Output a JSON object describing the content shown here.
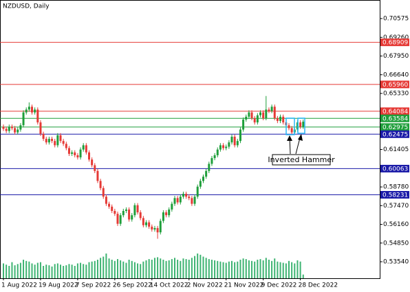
{
  "chart_data": {
    "type": "candlestick",
    "title": "NZDUSD, Daily",
    "categories": [
      "1 Aug 2022",
      null,
      null,
      null,
      null,
      null,
      null,
      null,
      null,
      null,
      null,
      null,
      null,
      "19 Aug 2022",
      null,
      null,
      null,
      null,
      null,
      null,
      null,
      null,
      null,
      null,
      null,
      null,
      "7 Sep 2022",
      null,
      null,
      null,
      null,
      null,
      null,
      null,
      null,
      null,
      null,
      null,
      null,
      "26 Sep 2022",
      null,
      null,
      null,
      null,
      null,
      null,
      null,
      null,
      null,
      null,
      null,
      null,
      "14 Oct 2022",
      null,
      null,
      null,
      null,
      null,
      null,
      null,
      null,
      null,
      null,
      null,
      null,
      "2 Nov 2022",
      null,
      null,
      null,
      null,
      null,
      null,
      null,
      null,
      null,
      null,
      null,
      null,
      "21 Nov 2022",
      null,
      null,
      null,
      null,
      null,
      null,
      null,
      null,
      null,
      null,
      null,
      null,
      "9 Dec 2022",
      null,
      null,
      null,
      null,
      null,
      null,
      null,
      null,
      null,
      null,
      null,
      null,
      "28 Dec 2022",
      null
    ],
    "open": [
      0.63,
      0.6285,
      0.627,
      0.63,
      0.629,
      0.626,
      0.628,
      0.631,
      0.64,
      0.642,
      0.644,
      0.64,
      0.642,
      0.633,
      0.625,
      0.6215,
      0.619,
      0.6215,
      0.62,
      0.617,
      0.624,
      0.62,
      0.618,
      0.615,
      0.611,
      0.612,
      0.61,
      0.6085,
      0.614,
      0.617,
      0.612,
      0.607,
      0.603,
      0.599,
      0.592,
      0.587,
      0.581,
      0.576,
      0.574,
      0.571,
      0.569,
      0.562,
      0.568,
      0.571,
      0.572,
      0.565,
      0.568,
      0.575,
      0.57,
      0.566,
      0.561,
      0.563,
      0.56,
      0.558,
      0.559,
      0.556,
      0.564,
      0.57,
      0.568,
      0.572,
      0.576,
      0.58,
      0.577,
      0.581,
      0.583,
      0.581,
      0.58,
      0.576,
      0.581,
      0.588,
      0.592,
      0.595,
      0.599,
      0.604,
      0.608,
      0.61,
      0.614,
      0.617,
      0.615,
      0.616,
      0.619,
      0.623,
      0.617,
      0.62,
      0.628,
      0.635,
      0.637,
      0.64,
      0.636,
      0.633,
      0.638,
      0.64,
      0.636,
      0.642,
      0.641,
      0.644,
      0.636,
      0.634,
      0.637,
      0.633,
      0.631,
      0.629,
      0.626,
      0.628,
      0.633,
      0.63
    ],
    "high": [
      0.6315,
      0.63,
      0.6315,
      0.6315,
      0.6305,
      0.6295,
      0.6325,
      0.6415,
      0.6435,
      0.647,
      0.6455,
      0.6435,
      0.6435,
      0.6345,
      0.6265,
      0.623,
      0.623,
      0.623,
      0.6215,
      0.6255,
      0.6255,
      0.6215,
      0.6195,
      0.6165,
      0.6135,
      0.6135,
      0.6115,
      0.6155,
      0.6185,
      0.6185,
      0.6135,
      0.6085,
      0.6045,
      0.6005,
      0.5935,
      0.5885,
      0.5825,
      0.5775,
      0.5755,
      0.5725,
      0.5705,
      0.5695,
      0.5725,
      0.5735,
      0.5735,
      0.5695,
      0.5765,
      0.5765,
      0.5715,
      0.5675,
      0.5645,
      0.5645,
      0.5615,
      0.5605,
      0.5605,
      0.5655,
      0.5715,
      0.5715,
      0.5735,
      0.5775,
      0.5815,
      0.5815,
      0.5825,
      0.5845,
      0.5845,
      0.5825,
      0.5815,
      0.5825,
      0.5895,
      0.5935,
      0.5965,
      0.6005,
      0.6055,
      0.6095,
      0.6115,
      0.6155,
      0.6185,
      0.6185,
      0.6175,
      0.6205,
      0.6245,
      0.6245,
      0.6215,
      0.6295,
      0.6365,
      0.6385,
      0.6415,
      0.6415,
      0.6375,
      0.6395,
      0.6415,
      0.6415,
      0.6515,
      0.6435,
      0.6455,
      0.6455,
      0.6375,
      0.6385,
      0.6385,
      0.6345,
      0.6325,
      0.6305,
      0.6295,
      0.6345,
      0.6345,
      0.635
    ],
    "low": [
      0.627,
      0.6255,
      0.6255,
      0.6275,
      0.6245,
      0.6245,
      0.6265,
      0.6295,
      0.6385,
      0.6405,
      0.6385,
      0.6385,
      0.6315,
      0.6235,
      0.62,
      0.6175,
      0.6175,
      0.6185,
      0.6155,
      0.6155,
      0.6185,
      0.6165,
      0.6135,
      0.6095,
      0.6095,
      0.6085,
      0.607,
      0.607,
      0.6125,
      0.6105,
      0.6055,
      0.6015,
      0.5975,
      0.5905,
      0.5855,
      0.5795,
      0.5745,
      0.5725,
      0.5695,
      0.5675,
      0.5605,
      0.5605,
      0.5665,
      0.5695,
      0.5635,
      0.5635,
      0.5665,
      0.5685,
      0.5645,
      0.5595,
      0.5595,
      0.5585,
      0.5565,
      0.5565,
      0.5515,
      0.5545,
      0.5625,
      0.5665,
      0.5665,
      0.5705,
      0.5745,
      0.5755,
      0.5755,
      0.5795,
      0.5795,
      0.5785,
      0.5745,
      0.5745,
      0.5795,
      0.5865,
      0.5905,
      0.5935,
      0.5975,
      0.6025,
      0.6065,
      0.6085,
      0.6125,
      0.6135,
      0.6135,
      0.6145,
      0.6175,
      0.6155,
      0.6155,
      0.6185,
      0.6265,
      0.6335,
      0.6355,
      0.6345,
      0.6315,
      0.6315,
      0.6365,
      0.6345,
      0.6345,
      0.6395,
      0.6395,
      0.6345,
      0.6325,
      0.6325,
      0.6315,
      0.6295,
      0.6275,
      0.6245,
      0.6245,
      0.6265,
      0.6285,
      0.6285
    ],
    "close": [
      0.6285,
      0.627,
      0.63,
      0.629,
      0.626,
      0.628,
      0.631,
      0.64,
      0.642,
      0.644,
      0.64,
      0.642,
      0.633,
      0.625,
      0.6215,
      0.619,
      0.6215,
      0.62,
      0.617,
      0.624,
      0.62,
      0.618,
      0.615,
      0.611,
      0.612,
      0.61,
      0.6085,
      0.614,
      0.617,
      0.612,
      0.607,
      0.603,
      0.599,
      0.592,
      0.587,
      0.581,
      0.576,
      0.574,
      0.571,
      0.569,
      0.562,
      0.568,
      0.571,
      0.572,
      0.565,
      0.568,
      0.575,
      0.57,
      0.566,
      0.561,
      0.563,
      0.56,
      0.558,
      0.559,
      0.556,
      0.564,
      0.57,
      0.568,
      0.572,
      0.576,
      0.58,
      0.577,
      0.581,
      0.583,
      0.581,
      0.58,
      0.576,
      0.581,
      0.588,
      0.592,
      0.595,
      0.599,
      0.604,
      0.608,
      0.61,
      0.614,
      0.617,
      0.615,
      0.616,
      0.619,
      0.623,
      0.617,
      0.62,
      0.628,
      0.635,
      0.637,
      0.64,
      0.636,
      0.633,
      0.638,
      0.64,
      0.636,
      0.642,
      0.641,
      0.644,
      0.636,
      0.634,
      0.637,
      0.633,
      0.631,
      0.629,
      0.626,
      0.628,
      0.633,
      0.63,
      0.6335
    ],
    "volume": [
      24,
      22,
      20,
      26,
      21,
      23,
      25,
      30,
      28,
      27,
      24,
      22,
      25,
      26,
      20,
      22,
      21,
      19,
      23,
      24,
      22,
      20,
      21,
      23,
      22,
      20,
      24,
      25,
      23,
      22,
      26,
      27,
      28,
      30,
      33,
      35,
      40,
      32,
      30,
      28,
      31,
      29,
      27,
      25,
      30,
      28,
      26,
      24,
      23,
      27,
      29,
      31,
      30,
      33,
      34,
      32,
      30,
      28,
      29,
      31,
      33,
      30,
      28,
      32,
      31,
      30,
      33,
      36,
      40,
      38,
      35,
      33,
      31,
      30,
      29,
      28,
      27,
      26,
      25,
      27,
      28,
      26,
      27,
      30,
      32,
      31,
      29,
      28,
      27,
      30,
      31,
      29,
      33,
      30,
      28,
      32,
      27,
      26,
      25,
      24,
      28,
      26,
      24,
      29,
      27,
      6
    ],
    "ylim": [
      0.52384,
      0.71874
    ],
    "yticks": [
      0.70575,
      {
        "value": 0.6926,
        "label": "0.69260"
      },
      {
        "value": 0.6795,
        "label": "0.67950"
      },
      {
        "value": 0.6664,
        "label": "0.66640"
      },
      {
        "value": 0.6533,
        "label": "0.65330"
      },
      0.61405,
      {
        "value": 0.5878,
        "label": "0.58780"
      },
      {
        "value": 0.5747,
        "label": "0.57470"
      },
      {
        "value": 0.5616,
        "label": "0.56160"
      },
      {
        "value": 0.5485,
        "label": "0.54850"
      },
      {
        "value": 0.5354,
        "label": "0.53540"
      }
    ],
    "levels": [
      {
        "value": 0.68909,
        "color": "#e53935"
      },
      {
        "value": 0.6596,
        "label": "0.65960",
        "color": "#e53935"
      },
      {
        "value": 0.64084,
        "color": "#e53935"
      },
      {
        "value": 0.63584,
        "color": "#1e9e3a"
      },
      {
        "value": 0.62975,
        "color": "#1e9e3a"
      },
      {
        "value": 0.62475,
        "color": "#1a1aa8"
      },
      {
        "value": 0.60063,
        "color": "#1a1aa8"
      },
      {
        "value": 0.58231,
        "color": "#1a1aa8"
      }
    ],
    "bull_color": "#1e9e3a",
    "bear_color": "#e53935",
    "volume_color": "#3cb371",
    "annotation": "Inverted Hammer"
  }
}
